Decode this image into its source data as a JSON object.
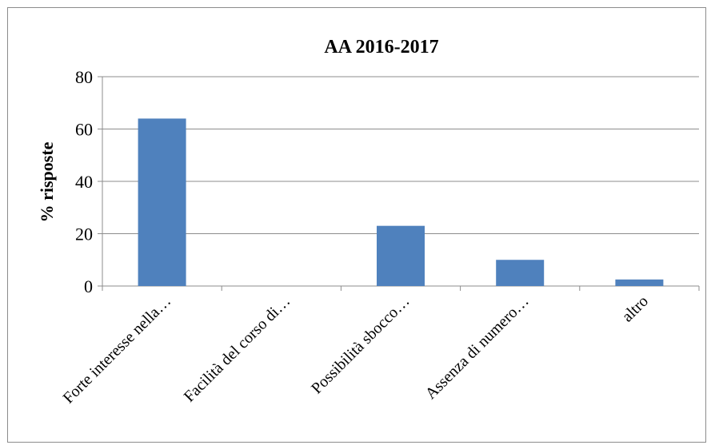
{
  "chart_data": {
    "type": "bar",
    "title": "AA 2016-2017",
    "xlabel": "",
    "ylabel": "% risposte",
    "ylim": [
      0,
      80
    ],
    "yticks": [
      0,
      20,
      40,
      60,
      80
    ],
    "grid": true,
    "legend": "none",
    "categories": [
      "Forte interesse nella…",
      "Facilità del corso di…",
      "Possibilità sbocco…",
      "Assenza di numero…",
      "altro"
    ],
    "values": [
      64,
      0,
      23,
      10,
      2.5
    ],
    "colors": {
      "bar": "#4f81bd",
      "grid": "#8c8c8c",
      "axis": "#8c8c8c"
    }
  }
}
